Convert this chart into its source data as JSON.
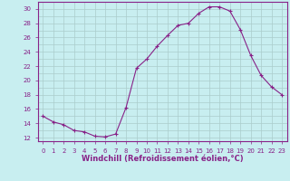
{
  "x": [
    0,
    1,
    2,
    3,
    4,
    5,
    6,
    7,
    8,
    9,
    10,
    11,
    12,
    13,
    14,
    15,
    16,
    17,
    18,
    19,
    20,
    21,
    22,
    23
  ],
  "y": [
    15.0,
    14.2,
    13.8,
    13.0,
    12.8,
    12.2,
    12.1,
    12.5,
    16.2,
    21.7,
    23.0,
    24.8,
    26.3,
    27.7,
    28.0,
    29.4,
    30.3,
    30.3,
    29.7,
    27.1,
    23.5,
    20.7,
    19.1,
    18.0
  ],
  "line_color": "#882288",
  "marker": "+",
  "bg_color": "#C8EEF0",
  "grid_color": "#AACCCC",
  "axis_color": "#882288",
  "xlabel": "Windchill (Refroidissement éolien,°C)",
  "ylim": [
    11.5,
    31.0
  ],
  "xlim": [
    -0.5,
    23.5
  ],
  "yticks": [
    12,
    14,
    16,
    18,
    20,
    22,
    24,
    26,
    28,
    30
  ],
  "xticks": [
    0,
    1,
    2,
    3,
    4,
    5,
    6,
    7,
    8,
    9,
    10,
    11,
    12,
    13,
    14,
    15,
    16,
    17,
    18,
    19,
    20,
    21,
    22,
    23
  ],
  "minor_yticks": [
    12,
    13,
    14,
    15,
    16,
    17,
    18,
    19,
    20,
    21,
    22,
    23,
    24,
    25,
    26,
    27,
    28,
    29,
    30
  ],
  "tick_fontsize": 5.0,
  "xlabel_fontsize": 6.0
}
